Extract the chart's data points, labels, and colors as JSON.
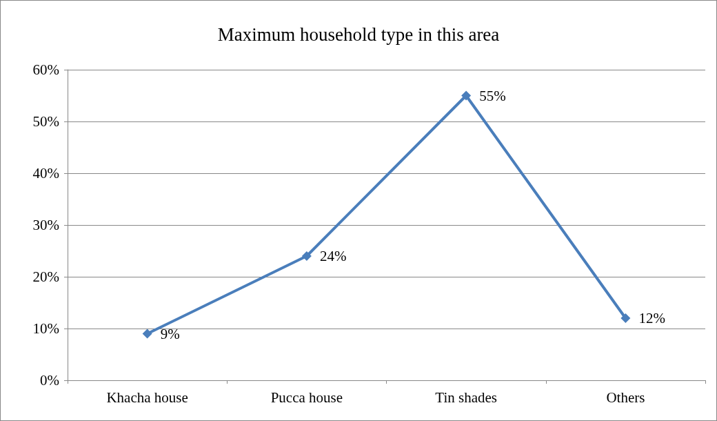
{
  "chart_data": {
    "type": "line",
    "title": "Maximum household type in this area",
    "categories": [
      "Khacha house",
      "Pucca house",
      "Tin shades",
      "Others"
    ],
    "series": [
      {
        "color": "#4a7ebb",
        "values": [
          9,
          24,
          55,
          12
        ],
        "value_labels": [
          "9%",
          "24%",
          "55%",
          "12%"
        ]
      }
    ],
    "ylim": [
      0,
      60
    ],
    "yticks": [
      {
        "value": 0,
        "label": "0%"
      },
      {
        "value": 10,
        "label": "10%"
      },
      {
        "value": 20,
        "label": "20%"
      },
      {
        "value": 30,
        "label": "30%"
      },
      {
        "value": 40,
        "label": "40%"
      },
      {
        "value": 50,
        "label": "50%"
      },
      {
        "value": 60,
        "label": "60%"
      }
    ],
    "grid": "y",
    "marker": "diamond",
    "line_style": "solid"
  }
}
